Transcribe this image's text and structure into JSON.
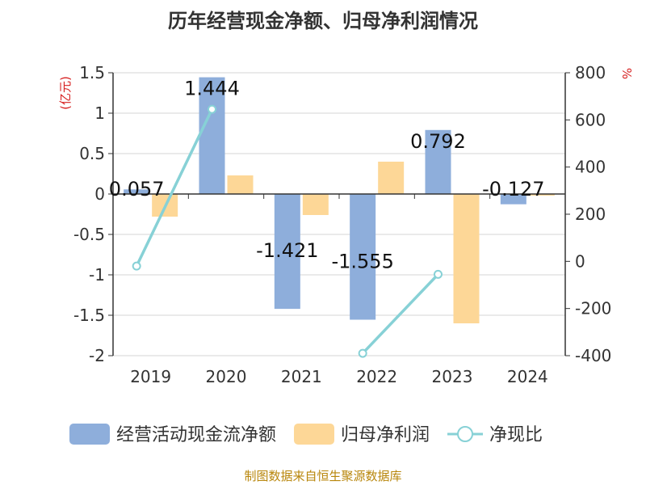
{
  "chart_data": {
    "type": "bar",
    "title": "历年经营现金净额、归母净利润情况",
    "categories": [
      "2019",
      "2020",
      "2021",
      "2022",
      "2023",
      "2024"
    ],
    "y_left": {
      "unit_label": "(亿元)",
      "ylim": [
        -2,
        1.5
      ],
      "ticks": [
        1.5,
        1,
        0.5,
        0,
        -0.5,
        -1,
        -1.5,
        -2
      ],
      "tick_labels": [
        "1.5",
        "1",
        "0.5",
        "0",
        "-0.5",
        "-1",
        "-1.5",
        "-2"
      ]
    },
    "y_right": {
      "unit_label": "%",
      "ylim": [
        -400,
        800
      ],
      "ticks": [
        800,
        600,
        400,
        200,
        0,
        -200,
        -400
      ],
      "tick_labels": [
        "800",
        "600",
        "400",
        "200",
        "0",
        "-200",
        "-400"
      ]
    },
    "series": [
      {
        "name": "经营活动现金流净额",
        "kind": "bar",
        "axis": "left",
        "color": "#8eaedb",
        "values": [
          0.057,
          1.444,
          -1.421,
          -1.555,
          0.792,
          -0.127
        ],
        "labels": [
          "0.057",
          "1.444",
          "-1.421",
          "-1.555",
          "0.792",
          "-0.127"
        ]
      },
      {
        "name": "归母净利润",
        "kind": "bar",
        "axis": "left",
        "color": "#fdd797",
        "values": [
          -0.28,
          0.23,
          -0.26,
          0.4,
          -1.6,
          -0.02
        ]
      },
      {
        "name": "净现比",
        "kind": "line",
        "axis": "right",
        "color": "#87d1d6",
        "values": [
          -20,
          645,
          null,
          -390,
          -55,
          null
        ]
      }
    ],
    "grid": true,
    "legend_position": "bottom"
  },
  "source_note": "制图数据来自恒生聚源数据库"
}
